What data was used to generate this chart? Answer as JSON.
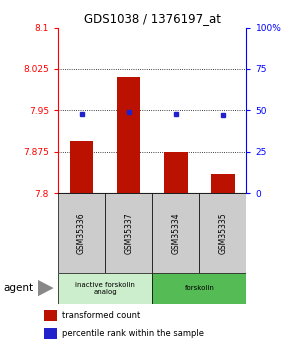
{
  "title": "GDS1038 / 1376197_at",
  "samples": [
    "GSM35336",
    "GSM35337",
    "GSM35334",
    "GSM35335"
  ],
  "bar_values": [
    7.895,
    8.01,
    7.875,
    7.835
  ],
  "blue_dot_values": [
    7.944,
    7.947,
    7.943,
    7.942
  ],
  "ylim_left": [
    7.8,
    8.1
  ],
  "yticks_left": [
    7.8,
    7.875,
    7.95,
    8.025,
    8.1
  ],
  "yticks_right_labels": [
    "0",
    "25",
    "50",
    "75",
    "100%"
  ],
  "bar_color": "#bb1100",
  "dot_color": "#2222cc",
  "groups": [
    {
      "label": "inactive forskolin\nanalog",
      "start": 0,
      "end": 2,
      "color": "#cceecc"
    },
    {
      "label": "forskolin",
      "start": 2,
      "end": 4,
      "color": "#55bb55"
    }
  ],
  "agent_label": "agent",
  "legend_items": [
    {
      "color": "#bb1100",
      "label": "transformed count"
    },
    {
      "color": "#2222cc",
      "label": "percentile rank within the sample"
    }
  ]
}
